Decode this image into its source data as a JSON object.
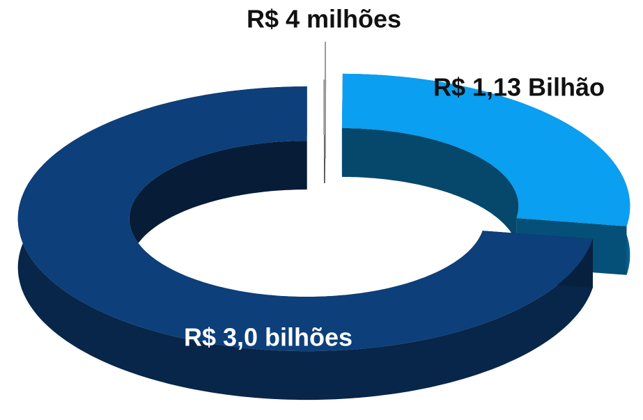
{
  "chart_data": {
    "type": "pie",
    "values": [
      4000000,
      1130000000,
      3000000000
    ],
    "value_labels": [
      "R$ 4 milhões",
      "R$ 1,13 Bilhão",
      "R$ 3,0 bilhões"
    ],
    "colors": [
      "#9a9a9a",
      "#0a9ff0",
      "#0d3f7a"
    ]
  }
}
